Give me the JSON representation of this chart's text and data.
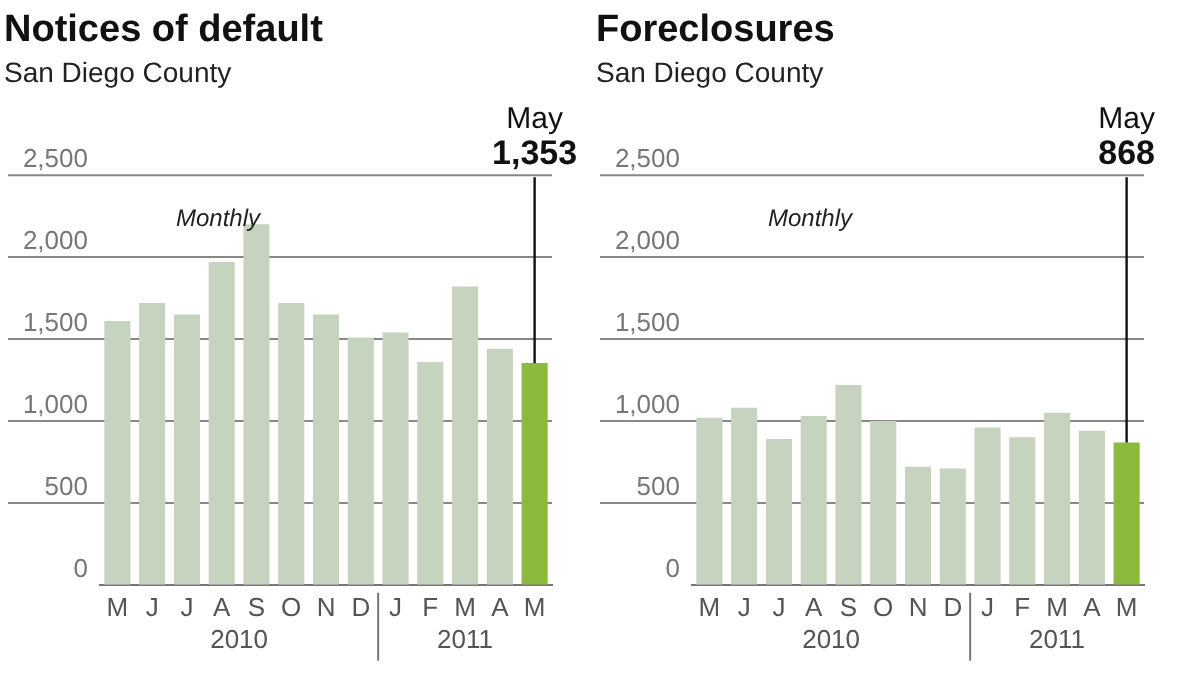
{
  "chart_data": [
    {
      "type": "bar",
      "title": "Notices of default",
      "subtitle": "San Diego County",
      "categories": [
        "M",
        "J",
        "J",
        "A",
        "S",
        "O",
        "N",
        "D",
        "J",
        "F",
        "M",
        "A",
        "M"
      ],
      "values": [
        1610,
        1720,
        1650,
        1970,
        2200,
        1720,
        1650,
        1510,
        1540,
        1360,
        1820,
        1440,
        1353
      ],
      "colors": [
        "#c5d3bf",
        "#c5d3bf",
        "#c5d3bf",
        "#c5d3bf",
        "#c5d3bf",
        "#c5d3bf",
        "#c5d3bf",
        "#c5d3bf",
        "#c5d3bf",
        "#c5d3bf",
        "#c5d3bf",
        "#c5d3bf",
        "#8cba3c"
      ],
      "value_labels": [
        null,
        null,
        null,
        null,
        null,
        null,
        null,
        null,
        null,
        null,
        null,
        null,
        "1,353"
      ],
      "annotations": [
        "Monthly",
        "May",
        "2010",
        "2011"
      ],
      "ylim": [
        0,
        2500
      ],
      "yticks": [
        {
          "value": 0,
          "label": "0"
        },
        {
          "value": 500,
          "label": "500"
        },
        {
          "value": 1000,
          "label": "1,000"
        },
        {
          "value": 1500,
          "label": "1,500"
        },
        {
          "value": 2000,
          "label": "2,000"
        },
        {
          "value": 2500,
          "label": "2,500"
        }
      ],
      "grid": "y",
      "legend": false
    },
    {
      "type": "bar",
      "title": "Foreclosures",
      "subtitle": "San Diego County",
      "categories": [
        "M",
        "J",
        "J",
        "A",
        "S",
        "O",
        "N",
        "D",
        "J",
        "F",
        "M",
        "A",
        "M"
      ],
      "values": [
        1020,
        1080,
        890,
        1030,
        1220,
        1000,
        720,
        710,
        960,
        900,
        1050,
        940,
        868
      ],
      "colors": [
        "#c5d3bf",
        "#c5d3bf",
        "#c5d3bf",
        "#c5d3bf",
        "#c5d3bf",
        "#c5d3bf",
        "#c5d3bf",
        "#c5d3bf",
        "#c5d3bf",
        "#c5d3bf",
        "#c5d3bf",
        "#c5d3bf",
        "#8cba3c"
      ],
      "value_labels": [
        null,
        null,
        null,
        null,
        null,
        null,
        null,
        null,
        null,
        null,
        null,
        null,
        "868"
      ],
      "annotations": [
        "Monthly",
        "May",
        "2010",
        "2011"
      ],
      "ylim": [
        0,
        2500
      ],
      "yticks": [
        {
          "value": 0,
          "label": "0"
        },
        {
          "value": 500,
          "label": "500"
        },
        {
          "value": 1000,
          "label": "1,000"
        },
        {
          "value": 1500,
          "label": "1,500"
        },
        {
          "value": 2000,
          "label": "2,000"
        },
        {
          "value": 2500,
          "label": "2,500"
        }
      ],
      "grid": "y",
      "legend": false
    }
  ]
}
